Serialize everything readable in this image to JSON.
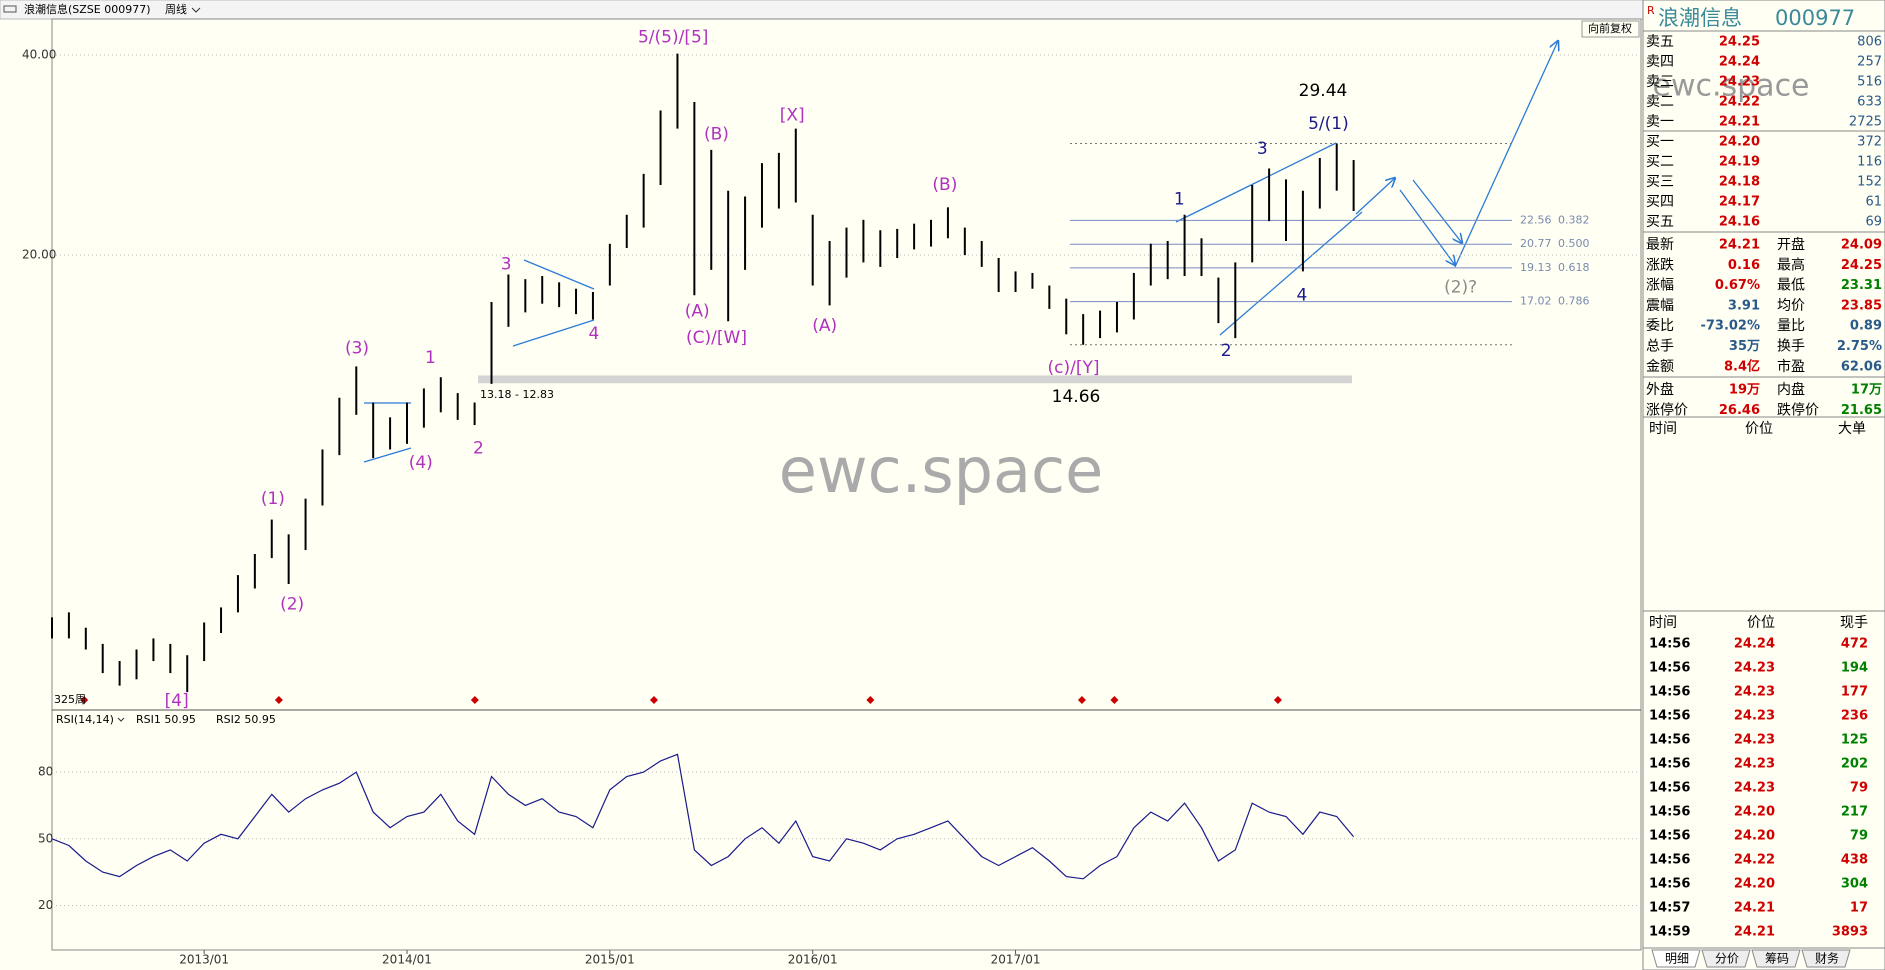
{
  "header": {
    "title": "浪潮信息(SZSE 000977)",
    "period": "周线",
    "adjust": "向前复权",
    "watermark": "ewc.space"
  },
  "chart_data": [
    {
      "type": "hilo",
      "scale": "log",
      "color": "#000000",
      "grid": true,
      "bars_label": "325周",
      "x": [
        "2012/04",
        "2012/05",
        "2012/06",
        "2012/07",
        "2012/08",
        "2012/09",
        "2012/10",
        "2012/11",
        "2012/12",
        "2013/01",
        "2013/02",
        "2013/03",
        "2013/04",
        "2013/05",
        "2013/06",
        "2013/07",
        "2013/08",
        "2013/09",
        "2013/10",
        "2013/11",
        "2013/12",
        "2014/01",
        "2014/02",
        "2014/03",
        "2014/04",
        "2014/05",
        "2014/06",
        "2014/07",
        "2014/08",
        "2014/09",
        "2014/10",
        "2014/11",
        "2014/12",
        "2015/01",
        "2015/02",
        "2015/03",
        "2015/04",
        "2015/05",
        "2015/06",
        "2015/07",
        "2015/08",
        "2015/09",
        "2015/10",
        "2015/11",
        "2015/12",
        "2016/01",
        "2016/02",
        "2016/03",
        "2016/04",
        "2016/05",
        "2016/06",
        "2016/07",
        "2016/08",
        "2016/09",
        "2016/10",
        "2016/11",
        "2016/12",
        "2017/01",
        "2017/02",
        "2017/03",
        "2017/04",
        "2017/05",
        "2017/06",
        "2017/07",
        "2017/08",
        "2017/09",
        "2017/10",
        "2017/11",
        "2017/12",
        "2018/01",
        "2018/02",
        "2018/03",
        "2018/04",
        "2018/05",
        "2018/06",
        "2018/07",
        "2018/08",
        "2018/09"
      ],
      "high": [
        5.7,
        5.8,
        5.5,
        5.2,
        4.9,
        5.1,
        5.3,
        5.2,
        5.0,
        5.6,
        5.9,
        6.6,
        7.1,
        8.0,
        7.6,
        8.6,
        10.2,
        12.2,
        13.6,
        12.0,
        11.4,
        12.0,
        12.6,
        13.1,
        12.4,
        12.0,
        17.0,
        18.7,
        18.4,
        18.6,
        18.2,
        17.8,
        17.6,
        20.8,
        23.0,
        26.5,
        33.0,
        40.2,
        34.0,
        28.8,
        25.0,
        24.5,
        27.5,
        28.5,
        31.0,
        23.0,
        21.0,
        22.0,
        22.6,
        21.8,
        21.9,
        22.3,
        22.6,
        23.6,
        22.0,
        21.0,
        19.8,
        18.9,
        18.8,
        18.0,
        17.2,
        16.3,
        16.5,
        17.0,
        18.8,
        20.8,
        21.0,
        23.0,
        21.2,
        18.5,
        19.5,
        25.5,
        27.0,
        26.0,
        25.0,
        28.0,
        29.44,
        27.8
      ],
      "low": [
        5.3,
        5.3,
        5.1,
        4.7,
        4.5,
        4.6,
        4.9,
        4.7,
        4.4,
        4.9,
        5.4,
        5.8,
        6.3,
        7.0,
        6.4,
        7.2,
        8.4,
        10.0,
        11.5,
        9.9,
        10.2,
        10.4,
        11.0,
        11.6,
        11.3,
        11.1,
        12.8,
        15.6,
        16.4,
        16.9,
        16.7,
        16.3,
        16.0,
        18.0,
        20.5,
        22.0,
        25.5,
        31.0,
        17.4,
        19.0,
        15.9,
        19.0,
        22.0,
        23.5,
        24.0,
        18.0,
        16.8,
        18.5,
        19.5,
        19.2,
        19.8,
        20.4,
        20.6,
        21.2,
        20.0,
        19.2,
        17.6,
        17.6,
        17.8,
        16.6,
        15.2,
        14.66,
        15.0,
        15.3,
        16.0,
        18.0,
        18.4,
        18.6,
        18.6,
        15.8,
        15.0,
        19.5,
        22.5,
        21.0,
        18.9,
        23.5,
        25.0,
        23.3
      ],
      "xlim": [
        "2012/04",
        "2020/02"
      ],
      "xticks": [
        "2013/01",
        "2014/01",
        "2015/01",
        "2016/01",
        "2017/01"
      ],
      "ylim": [
        4.15,
        44.85
      ],
      "yticks": [
        {
          "value": 40,
          "label": "40.00"
        },
        {
          "value": 20,
          "label": "20.00"
        }
      ],
      "levels": [
        29.44,
        14.66
      ],
      "band": {
        "label": "13.18 - 12.83",
        "high": 13.18,
        "low": 12.83
      },
      "fib": [
        {
          "price": 22.56,
          "ratio": 0.382
        },
        {
          "price": 20.77,
          "ratio": {
            "value": 0.5,
            "label": "0.500"
          }
        },
        {
          "price": 19.13,
          "ratio": 0.618
        },
        {
          "price": 17.02,
          "ratio": 0.786
        }
      ],
      "annotations": [
        {
          "text": "5/(5)/[5]",
          "color": "#b030c0"
        },
        {
          "text": "(B)",
          "color": "#b030c0"
        },
        {
          "text": "[X]",
          "color": "#b030c0"
        },
        {
          "text": "(B)",
          "color": "#b030c0"
        },
        {
          "text": "3",
          "color": "#b030c0"
        },
        {
          "text": "4",
          "color": "#b030c0"
        },
        {
          "text": "(3)",
          "color": "#b030c0"
        },
        {
          "text": "1",
          "color": "#b030c0"
        },
        {
          "text": "(4)",
          "color": "#b030c0"
        },
        {
          "text": "2",
          "color": "#b030c0"
        },
        {
          "text": "(1)",
          "color": "#b030c0"
        },
        {
          "text": "(2)",
          "color": "#b030c0"
        },
        {
          "text": "[4]",
          "color": "#b030c0"
        },
        {
          "text": "(A)",
          "color": "#b030c0"
        },
        {
          "text": "(C)/[W]",
          "color": "#b030c0"
        },
        {
          "text": "(A)",
          "color": "#b030c0"
        },
        {
          "text": "(c)/[Y]",
          "color": "#b030c0"
        },
        {
          "text": "1",
          "color": "#1a1a8c"
        },
        {
          "text": "3",
          "color": "#1a1a8c"
        },
        {
          "text": "5/(1)",
          "color": "#1a1a8c"
        },
        {
          "text": "4",
          "color": "#1a1a8c"
        },
        {
          "text": "2",
          "color": "#1a1a8c"
        },
        {
          "text": "(2)?",
          "color": "#8a8a8a"
        }
      ]
    },
    {
      "type": "line",
      "name": "RSI(14,14)",
      "legend": [
        "RSI1 50.95",
        "RSI2 50.95"
      ],
      "color": "#1a1a8c",
      "grid": true,
      "values": [
        50,
        47,
        40,
        35,
        33,
        38,
        42,
        45,
        40,
        48,
        52,
        50,
        60,
        70,
        62,
        68,
        72,
        75,
        80,
        62,
        55,
        60,
        62,
        70,
        58,
        52,
        78,
        70,
        65,
        68,
        62,
        60,
        55,
        72,
        78,
        80,
        85,
        88,
        45,
        38,
        42,
        50,
        55,
        48,
        58,
        42,
        40,
        50,
        48,
        45,
        50,
        52,
        55,
        58,
        50,
        42,
        38,
        42,
        46,
        40,
        33,
        32,
        38,
        42,
        55,
        62,
        58,
        66,
        55,
        40,
        45,
        66,
        62,
        60,
        52,
        62,
        60,
        50.95
      ],
      "ylim": [
        0,
        107
      ],
      "yticks": [
        80,
        50,
        20
      ]
    }
  ],
  "quote": {
    "flag": "R",
    "name": "浪潮信息",
    "code": "000977",
    "book": [
      {
        "label": "卖五",
        "price": "24.25",
        "volume": "806"
      },
      {
        "label": "卖四",
        "price": "24.24",
        "volume": "257"
      },
      {
        "label": "卖三",
        "price": "24.23",
        "volume": "516"
      },
      {
        "label": "卖二",
        "price": "24.22",
        "volume": "633"
      },
      {
        "label": "卖一",
        "price": "24.21",
        "volume": "2725"
      },
      {
        "label": "买一",
        "price": "24.20",
        "volume": "372"
      },
      {
        "label": "买二",
        "price": "24.19",
        "volume": "116"
      },
      {
        "label": "买三",
        "price": "24.18",
        "volume": "152"
      },
      {
        "label": "买四",
        "price": "24.17",
        "volume": "61"
      },
      {
        "label": "买五",
        "price": "24.16",
        "volume": "69"
      }
    ],
    "stats": [
      [
        {
          "label": "最新",
          "value": "24.21",
          "color": "#d00000"
        },
        {
          "label": "开盘",
          "value": "24.09",
          "color": "#d00000"
        }
      ],
      [
        {
          "label": "涨跌",
          "value": "0.16",
          "color": "#d00000"
        },
        {
          "label": "最高",
          "value": "24.25",
          "color": "#d00000"
        }
      ],
      [
        {
          "label": "涨幅",
          "value": "0.67%",
          "color": "#d00000"
        },
        {
          "label": "最低",
          "value": "23.31",
          "color": "#008000"
        }
      ],
      [
        {
          "label": "震幅",
          "value": "3.91",
          "color": "#2a5a8a"
        },
        {
          "label": "均价",
          "value": "23.85",
          "color": "#d00000"
        }
      ],
      [
        {
          "label": "委比",
          "value": "-73.02%",
          "color": "#2a5a8a"
        },
        {
          "label": "量比",
          "value": "0.89",
          "color": "#2a5a8a"
        }
      ],
      [
        {
          "label": "总手",
          "value": "35万",
          "color": "#2a5a8a"
        },
        {
          "label": "换手",
          "value": "2.75%",
          "color": "#2a5a8a"
        }
      ],
      [
        {
          "label": "金额",
          "value": "8.4亿",
          "color": "#d00000"
        },
        {
          "label": "市盈",
          "value": "62.06",
          "color": "#2a5a8a"
        }
      ],
      [
        {
          "label": "外盘",
          "value": "19万",
          "color": "#d00000"
        },
        {
          "label": "内盘",
          "value": "17万",
          "color": "#008000"
        }
      ],
      [
        {
          "label": "涨停价",
          "value": "26.46",
          "color": "#d00000"
        },
        {
          "label": "跌停价",
          "value": "21.65",
          "color": "#008000"
        }
      ]
    ],
    "big_header": [
      "时间",
      "价位",
      "大单"
    ],
    "trade_header": [
      "时间",
      "价位",
      "现手"
    ],
    "trades": [
      {
        "time": "14:56",
        "price": "24.24",
        "volume": "472",
        "color": "#d00000"
      },
      {
        "time": "14:56",
        "price": "24.23",
        "volume": "194",
        "color": "#008000"
      },
      {
        "time": "14:56",
        "price": "24.23",
        "volume": "177",
        "color": "#d00000"
      },
      {
        "time": "14:56",
        "price": "24.23",
        "volume": "236",
        "color": "#d00000"
      },
      {
        "time": "14:56",
        "price": "24.23",
        "volume": "125",
        "color": "#008000"
      },
      {
        "time": "14:56",
        "price": "24.23",
        "volume": "202",
        "color": "#008000"
      },
      {
        "time": "14:56",
        "price": "24.23",
        "volume": "79",
        "color": "#d00000"
      },
      {
        "time": "14:56",
        "price": "24.20",
        "volume": "217",
        "color": "#008000"
      },
      {
        "time": "14:56",
        "price": "24.20",
        "volume": "79",
        "color": "#008000"
      },
      {
        "time": "14:56",
        "price": "24.22",
        "volume": "438",
        "color": "#d00000"
      },
      {
        "time": "14:56",
        "price": "24.20",
        "volume": "304",
        "color": "#008000"
      },
      {
        "time": "14:57",
        "price": "24.21",
        "volume": "17",
        "color": "#d00000"
      },
      {
        "time": "14:59",
        "price": "24.21",
        "volume": "3893",
        "color": "#d00000"
      }
    ],
    "tabs": [
      "明细",
      "分价",
      "筹码",
      "财务"
    ]
  }
}
